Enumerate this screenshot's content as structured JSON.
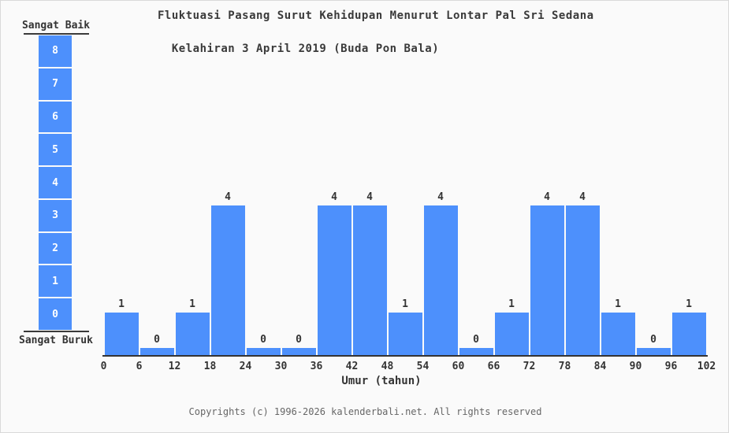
{
  "page": {
    "background": "#fafafa",
    "footer": "Copyrights (c) 1996-2026 kalenderbali.net. All rights reserved"
  },
  "scale": {
    "top_label": "Sangat Baik",
    "bottom_label": "Sangat Buruk",
    "levels": [
      "8",
      "7",
      "6",
      "5",
      "4",
      "3",
      "2",
      "1",
      "0"
    ],
    "bar_color": "#4d90fc"
  },
  "chart_data": {
    "type": "bar",
    "title_line1": "Fluktuasi Pasang Surut Kehidupan Menurut Lontar Pal Sri Sedana",
    "title_line2": "Kelahiran 3 April 2019 (Buda Pon Bala)",
    "xlabel": "Umur (tahun)",
    "x_ticks": [
      "0",
      "6",
      "12",
      "18",
      "24",
      "30",
      "36",
      "42",
      "48",
      "54",
      "60",
      "66",
      "72",
      "78",
      "84",
      "90",
      "96",
      "102"
    ],
    "categories": [
      "0-6",
      "6-12",
      "12-18",
      "18-24",
      "24-30",
      "30-36",
      "36-42",
      "42-48",
      "48-54",
      "54-60",
      "60-66",
      "66-72",
      "72-78",
      "78-84",
      "84-90",
      "90-96",
      "96-102"
    ],
    "values": [
      1,
      0,
      1,
      4,
      0,
      0,
      4,
      4,
      1,
      4,
      0,
      1,
      4,
      4,
      1,
      0,
      1
    ],
    "ylim": [
      0,
      8
    ],
    "bar_color": "#4d90fc",
    "grid": false,
    "legend": "none",
    "value_labels_shown": true
  }
}
